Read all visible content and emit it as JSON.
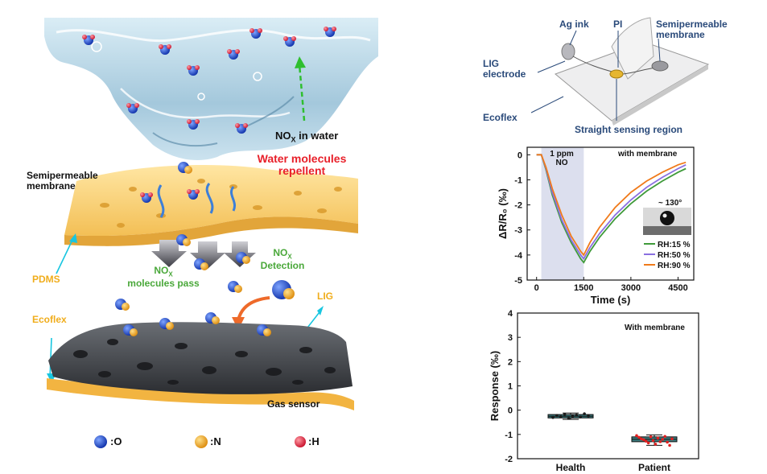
{
  "schematic": {
    "water_label": "NO",
    "water_label_sub": "X",
    "water_label_tail": " in water",
    "repellent_line1": "Water molecules",
    "repellent_line2": "repellent",
    "membrane_line1": "Semipermeable",
    "membrane_line2": "membrane",
    "pdms": "PDMS",
    "ecoflex": "Ecoflex",
    "lig": "LIG",
    "gas_sensor": "Gas sensor",
    "nox_pass_a": "NO",
    "nox_pass_sub": "X",
    "nox_pass_b": "molecules pass",
    "nox_det_a": "NO",
    "nox_det_sub": "X",
    "nox_det_b": "Detection",
    "legend": [
      {
        "symbol": ":O",
        "color": "#1f4fd6"
      },
      {
        "symbol": ":N",
        "color": "#f2a31b"
      },
      {
        "symbol": ":H",
        "color": "#e8263a"
      }
    ]
  },
  "device": {
    "ag_ink": "Ag ink",
    "pi": "PI",
    "semi_line1": "Semipermeable",
    "semi_line2": "membrane",
    "lig_line1": "LIG",
    "lig_line2": "electrode",
    "ecoflex": "Ecoflex",
    "sensing": "Straight sensing region"
  },
  "colors": {
    "rh15": "#3f9a3a",
    "rh50": "#8a6fe0",
    "rh90": "#f07a1a",
    "box_fill": "#3a7d80",
    "shade": "#dcdfee"
  },
  "chart_data": [
    {
      "type": "line",
      "title": "",
      "annotation_top": "with membrane",
      "exposure_label_1": "1 ppm",
      "exposure_label_2": "NO",
      "angle_label": "~ 130°",
      "xlabel": "Time (s)",
      "ylabel": "ΔR/R₀ (‰)",
      "xlim": [
        -300,
        5000
      ],
      "ylim": [
        -5,
        0.3
      ],
      "xticks": [
        "0",
        "1500",
        "3000",
        "4500"
      ],
      "yticks": [
        "0",
        "-1",
        "-2",
        "-3",
        "-4",
        "-5"
      ],
      "shaded_region": [
        150,
        1500
      ],
      "legend_position": "bottom-right",
      "series": [
        {
          "name": "RH:15 %",
          "color": "#3f9a3a",
          "x": [
            0,
            150,
            300,
            500,
            800,
            1100,
            1400,
            1500,
            1700,
            2000,
            2500,
            3000,
            3500,
            4000,
            4500,
            4750
          ],
          "y": [
            0,
            0,
            -0.6,
            -1.6,
            -2.7,
            -3.5,
            -4.15,
            -4.3,
            -3.85,
            -3.3,
            -2.55,
            -1.95,
            -1.45,
            -1.05,
            -0.7,
            -0.55
          ]
        },
        {
          "name": "RH:50 %",
          "color": "#8a6fe0",
          "x": [
            0,
            150,
            300,
            500,
            800,
            1100,
            1400,
            1500,
            1700,
            2000,
            2500,
            3000,
            3500,
            4000,
            4500,
            4750
          ],
          "y": [
            0,
            0,
            -0.55,
            -1.5,
            -2.6,
            -3.4,
            -4.0,
            -4.15,
            -3.7,
            -3.15,
            -2.4,
            -1.8,
            -1.3,
            -0.9,
            -0.55,
            -0.4
          ]
        },
        {
          "name": "RH:90 %",
          "color": "#f07a1a",
          "x": [
            0,
            150,
            300,
            500,
            800,
            1100,
            1400,
            1500,
            1700,
            2000,
            2500,
            3000,
            3500,
            4000,
            4500,
            4750
          ],
          "y": [
            0,
            0,
            -0.5,
            -1.35,
            -2.4,
            -3.25,
            -3.85,
            -4.0,
            -3.5,
            -2.9,
            -2.1,
            -1.5,
            -1.05,
            -0.7,
            -0.4,
            -0.3
          ]
        }
      ]
    },
    {
      "type": "box",
      "annotation_top": "With membrane",
      "xlabel": "",
      "ylabel": "Response (‰)",
      "ylim": [
        -2,
        4
      ],
      "yticks": [
        "4",
        "3",
        "2",
        "1",
        "0",
        "-1",
        "-2"
      ],
      "categories": [
        "Health",
        "Patient"
      ],
      "boxes": [
        {
          "name": "Health",
          "q1": -0.32,
          "median": -0.25,
          "q3": -0.18,
          "min": -0.38,
          "max": -0.12,
          "point_color": "#1b1b1b",
          "points": [
            -0.3,
            -0.22,
            -0.27,
            -0.18,
            -0.33,
            -0.25,
            -0.2,
            -0.28,
            -0.15,
            -0.24
          ]
        },
        {
          "name": "Patient",
          "q1": -1.3,
          "median": -1.2,
          "q3": -1.1,
          "min": -1.45,
          "max": -1.02,
          "point_color": "#e02020",
          "points": [
            -1.05,
            -1.12,
            -1.18,
            -1.22,
            -1.28,
            -1.35,
            -1.1,
            -1.25,
            -1.4,
            -1.15,
            -1.3,
            -1.2,
            -1.08,
            -1.32,
            -1.45,
            -1.18
          ]
        }
      ]
    }
  ]
}
